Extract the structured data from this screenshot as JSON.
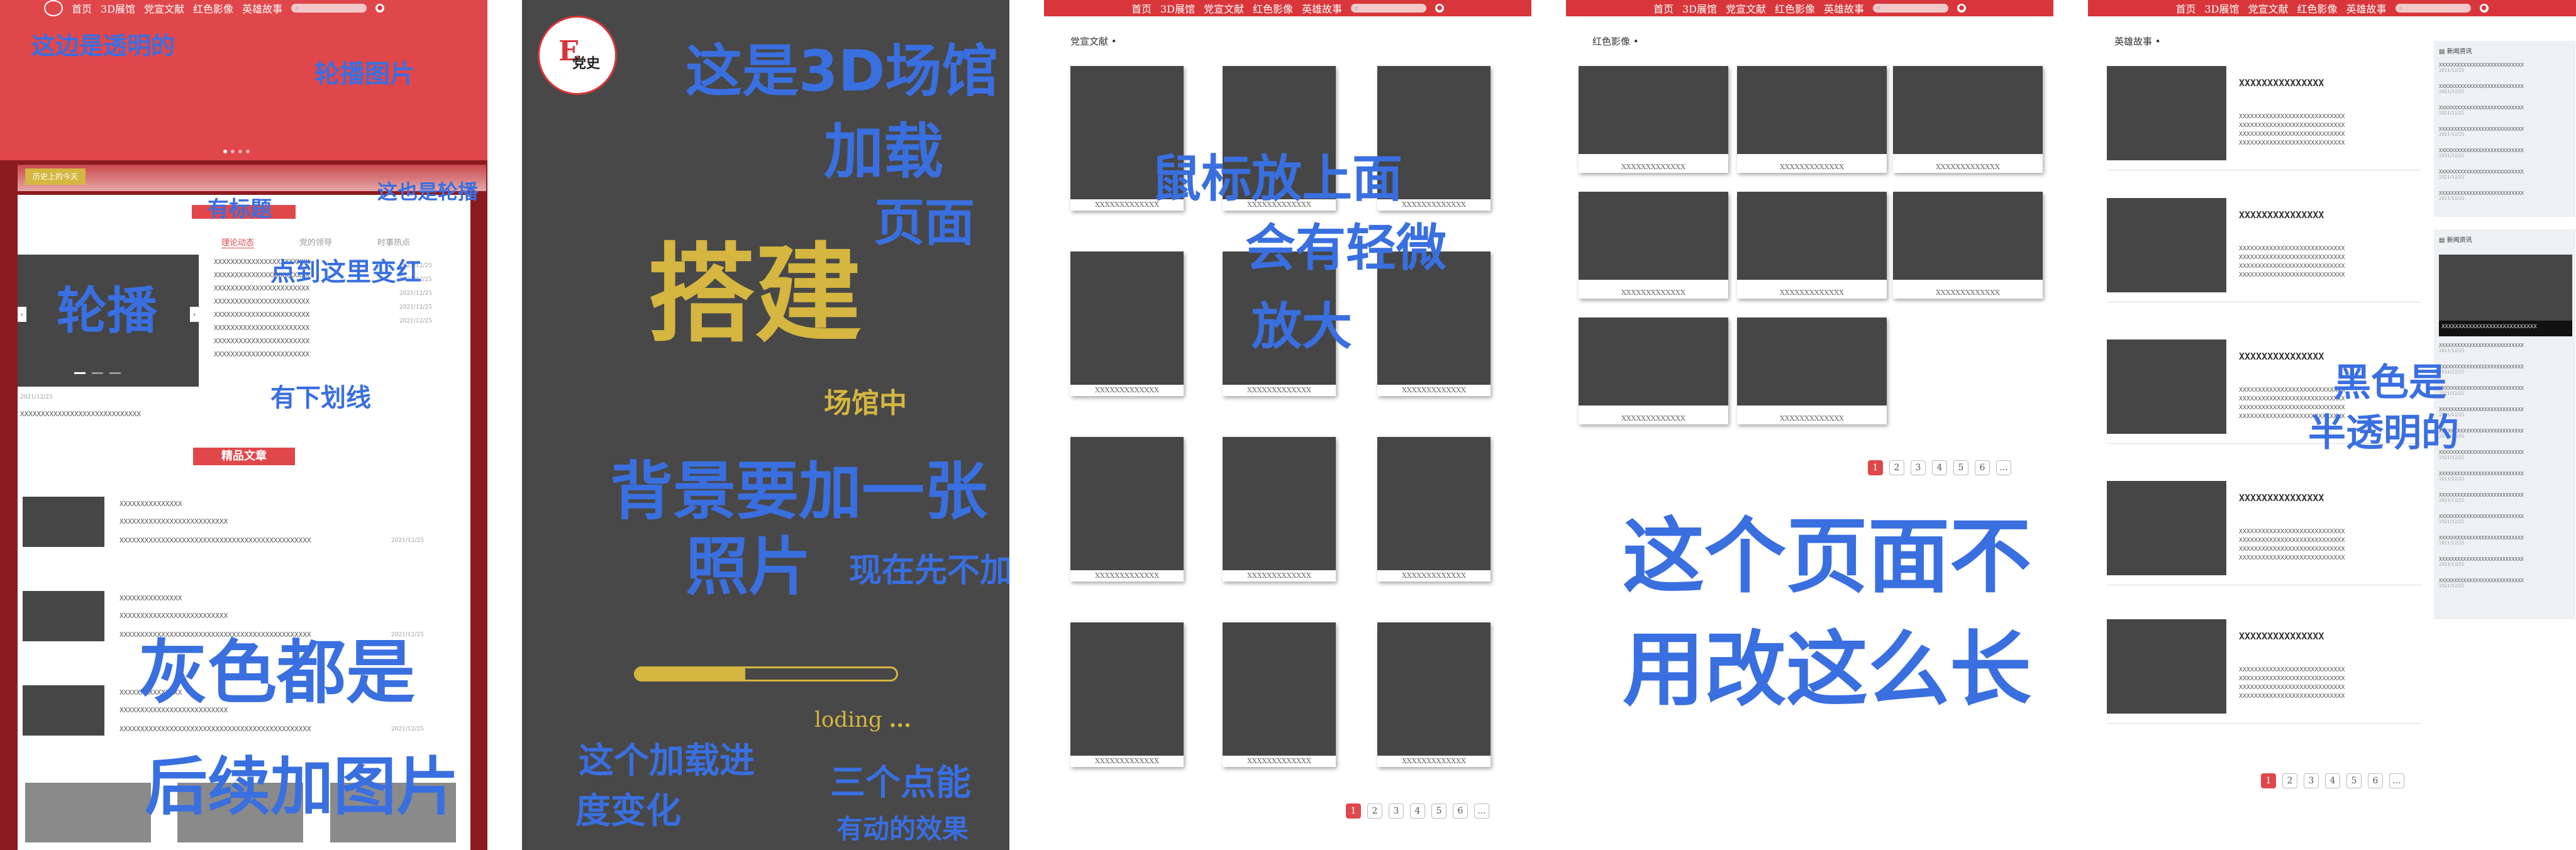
{
  "nav": {
    "items": [
      "首页",
      "3D展馆",
      "党宣文献",
      "红色影像",
      "英雄故事"
    ],
    "search_icon": "search-icon",
    "user_icon": "user-icon"
  },
  "p1": {
    "history_today": "历史上的今天",
    "tabs": [
      "理论动态",
      "党的领导",
      "时事热点"
    ],
    "news_lines": [
      "XXXXXXXXXXXXXXXXXXXXXXX",
      "XXXXXXXXXXXXXXXXXXXXXXX",
      "XXXXXXXXXXXXXXXXXXXXXXX",
      "XXXXXXXXXXXXXXXXXXXXXXX",
      "XXXXXXXXXXXXXXXXXXXXXXX",
      "XXXXXXXXXXXXXXXXXXXXXXX",
      "XXXXXXXXXXXXXXXXXXXXXXX",
      "XXXXXXXXXXXXXXXXXXXXXXX"
    ],
    "news_dates": [
      "2021/12/25",
      "2021/12/25",
      "2021/12/25",
      "2021/12/25",
      "2021/12/25"
    ],
    "slide_date": "2021/12/25",
    "slide_caption": "XXXXXXXXXXXXXXXXXXXXXXXXXXXXX",
    "featured_title": "精品文章",
    "articles": [
      {
        "l1": "XXXXXXXXXXXXXXX",
        "l2": "XXXXXXXXXXXXXXXXXXXXXXXXXX",
        "l3": "XXXXXXXXXXXXXXXXXXXXXXXXXXXXXXXXXXXXXXXXXXXXXX",
        "date": "2021/12/25"
      },
      {
        "l1": "XXXXXXXXXXXXXXX",
        "l2": "XXXXXXXXXXXXXXXXXXXXXXXXXX",
        "l3": "XXXXXXXXXXXXXXXXXXXXXXXXXXXXXXXXXXXXXXXXXXXXXX",
        "date": "2021/12/25"
      },
      {
        "l1": "XXXXXXXXXXXXXXX",
        "l2": "XXXXXXXXXXXXXXXXXXXXXXXXXX",
        "l3": "XXXXXXXXXXXXXXXXXXXXXXXXXXXXXXXXXXXXXXXXXXXXXX",
        "date": "2021/12/25"
      }
    ],
    "notes": {
      "a": "这边是透明的",
      "b": "轮播图片",
      "c": "这也是轮播",
      "d": "有标题",
      "e": "点到这里变红",
      "f": "有下划线",
      "g": "轮播",
      "h": "灰色都是",
      "i": "后续加图片"
    }
  },
  "p2": {
    "logo_mark": "E",
    "logo_text": "党史",
    "title": "搭建",
    "subtitle": "场馆中",
    "loading": "loding",
    "loading_dots": "...",
    "progress": 0.42,
    "notes": {
      "a": "这是3D场馆",
      "b": "加载",
      "c": "页面",
      "d": "背景要加一张",
      "e": "照片",
      "f": "现在先不加",
      "g": "这个加载进",
      "h": "度变化",
      "i": "三个点能",
      "j": "有动的效果"
    }
  },
  "p3": {
    "section_title": "党宣文献",
    "caption": "XXXXXXXXXXXXX",
    "pages": [
      "1",
      "2",
      "3",
      "4",
      "5",
      "6",
      "..."
    ],
    "notes": {
      "a": "鼠标放上面",
      "b": "会有轻微",
      "c": "放大"
    }
  },
  "p4": {
    "section_title": "红色影像",
    "caption": "XXXXXXXXXXXXX",
    "pages": [
      "1",
      "2",
      "3",
      "4",
      "5",
      "6",
      "..."
    ],
    "notes": {
      "a": "这个页面不",
      "b": "用改这么长"
    }
  },
  "p5": {
    "section_title": "英雄故事",
    "story_title": "XXXXXXXXXXXXXXX",
    "story_line": "XXXXXXXXXXXXXXXXXXXXXXXXXXXX",
    "side_title_1": "新闻资讯",
    "side_title_2": "新闻资讯",
    "side_line": "XXXXXXXXXXXXXXXXXXXXXXXXXXXX",
    "side_date": "2021/12/25",
    "side_caption": "XXXXXXXXXXXXXXXXXXXXXXXXXXXX",
    "pages": [
      "1",
      "2",
      "3",
      "4",
      "5",
      "6",
      "..."
    ],
    "notes": {
      "a": "黑色是",
      "b": "半透明的"
    }
  },
  "colors": {
    "red": "#d8363a",
    "gray": "#464646",
    "gold": "#d4b640",
    "ink": "#3a6fe0"
  }
}
